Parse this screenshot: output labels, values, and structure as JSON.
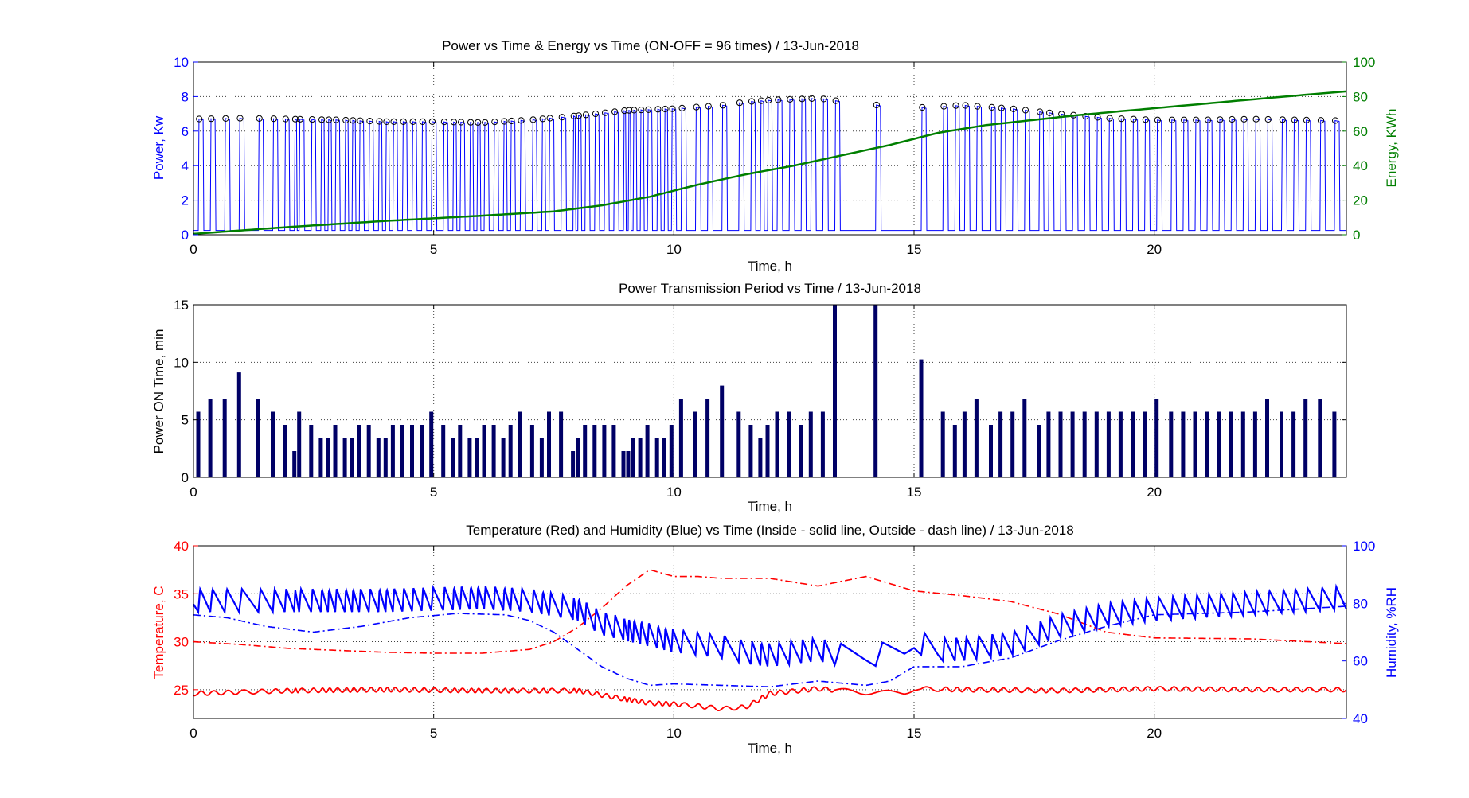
{
  "chart_data": [
    {
      "type": "line",
      "title": "Power vs Time & Energy vs Time (ON-OFF = 96 times) / 13-Jun-2018",
      "xlabel": "Time, h",
      "ylabel_left": "Power, Kw",
      "ylabel_right": "Energy, KWh",
      "xlim": [
        0,
        24
      ],
      "ylim_left": [
        0,
        10
      ],
      "ylim_right": [
        0,
        100
      ],
      "xticks": [
        "0",
        "5",
        "10",
        "15",
        "20"
      ],
      "yticks_left": [
        "0",
        "2",
        "4",
        "6",
        "8",
        "10"
      ],
      "yticks_right": [
        "0",
        "20",
        "40",
        "60",
        "80",
        "100"
      ],
      "grid": true,
      "colors": {
        "power": "#0000ff",
        "energy": "#007f00",
        "markers": "#000000"
      },
      "power_peak_profile": {
        "x": [
          0,
          1,
          2,
          3,
          4,
          5,
          6,
          7,
          8,
          9,
          10,
          11,
          11.5,
          12,
          13,
          13.5,
          14,
          15,
          16,
          17,
          18,
          19,
          20,
          21,
          22,
          23,
          24
        ],
        "y": [
          6.7,
          6.75,
          6.7,
          6.65,
          6.55,
          6.55,
          6.5,
          6.65,
          6.9,
          7.2,
          7.3,
          7.5,
          7.7,
          7.8,
          7.9,
          7.7,
          7.55,
          7.35,
          7.5,
          7.3,
          7.0,
          6.75,
          6.65,
          6.65,
          6.7,
          6.65,
          6.6
        ]
      },
      "power_base_kw": 0.25,
      "energy": {
        "x": [
          0,
          2,
          4,
          6,
          7.5,
          8.5,
          9.5,
          10.5,
          11.5,
          12.5,
          13.5,
          14.5,
          15.5,
          16.5,
          17.5,
          18.5,
          19.5,
          20.5,
          21.5,
          22.5,
          24
        ],
        "y": [
          0.5,
          4.5,
          8,
          11,
          13.5,
          17,
          22,
          29,
          35,
          40,
          46,
          52,
          59,
          63.5,
          66.5,
          69.5,
          72,
          74.5,
          77,
          79.5,
          83
        ]
      }
    },
    {
      "type": "bar",
      "title": "Power Transmission Period vs Time / 13-Jun-2018",
      "xlabel": "Time, h",
      "ylabel": "Power ON Time, min",
      "xlim": [
        0,
        24
      ],
      "ylim": [
        0,
        15
      ],
      "xticks": [
        "0",
        "5",
        "10",
        "15",
        "20"
      ],
      "yticks": [
        "0",
        "5",
        "10",
        "15"
      ],
      "grid": true,
      "color": "#000066",
      "bars": {
        "x": [
          0.1,
          0.35,
          0.65,
          0.95,
          1.35,
          1.65,
          1.9,
          2.1,
          2.2,
          2.45,
          2.65,
          2.8,
          2.95,
          3.15,
          3.3,
          3.45,
          3.65,
          3.85,
          4.0,
          4.15,
          4.35,
          4.55,
          4.75,
          4.95,
          5.2,
          5.4,
          5.55,
          5.75,
          5.9,
          6.05,
          6.25,
          6.45,
          6.6,
          6.8,
          7.05,
          7.25,
          7.4,
          7.65,
          7.9,
          8.0,
          8.15,
          8.35,
          8.55,
          8.75,
          8.95,
          9.05,
          9.15,
          9.3,
          9.45,
          9.65,
          9.8,
          9.95,
          10.15,
          10.45,
          10.7,
          11.0,
          11.35,
          11.6,
          11.8,
          11.95,
          12.15,
          12.4,
          12.65,
          12.85,
          13.1,
          13.35,
          14.2,
          15.15,
          15.6,
          15.85,
          16.05,
          16.3,
          16.6,
          16.8,
          17.05,
          17.3,
          17.6,
          17.8,
          18.05,
          18.3,
          18.55,
          18.8,
          19.05,
          19.3,
          19.55,
          19.8,
          20.05,
          20.35,
          20.6,
          20.85,
          21.1,
          21.35,
          21.6,
          21.85,
          22.1,
          22.35,
          22.65,
          22.9,
          23.15,
          23.45,
          23.75
        ]
      }
    },
    {
      "type": "line",
      "title": "Temperature (Red) and Humidity (Blue) vs Time (Inside - solid line, Outside - dash line) / 13-Jun-2018",
      "xlabel": "Time, h",
      "ylabel_left": "Temperature, C",
      "ylabel_right": "Humidity, %RH",
      "xlim": [
        0,
        24
      ],
      "ylim_left": [
        22,
        40
      ],
      "ylim_right": [
        40,
        100
      ],
      "xticks": [
        "0",
        "5",
        "10",
        "15",
        "20"
      ],
      "yticks_left": [
        "25",
        "30",
        "35",
        "40"
      ],
      "yticks_right": [
        "40",
        "60",
        "80",
        "100"
      ],
      "grid": true,
      "colors": {
        "temperature": "#ff0000",
        "humidity": "#0000ff"
      },
      "series": [
        {
          "axis": "left",
          "style": "solid",
          "color": "#ff0000",
          "osc_amp": 0.45,
          "x": [
            0,
            2,
            4,
            6,
            8,
            9,
            9.5,
            10,
            10.5,
            11,
            11.5,
            12,
            13,
            14,
            14.8,
            15,
            16,
            18,
            20,
            22,
            24
          ],
          "y": [
            24.6,
            24.9,
            25.0,
            24.9,
            24.9,
            24.0,
            23.6,
            23.5,
            23.3,
            23.0,
            23.2,
            24.6,
            25.1,
            24.7,
            24.7,
            25.1,
            25.0,
            24.9,
            25.1,
            25.0,
            25.0
          ]
        },
        {
          "axis": "left",
          "style": "dashdot",
          "color": "#ff0000",
          "x": [
            0,
            1,
            2,
            3,
            4,
            5,
            6,
            7,
            7.5,
            8,
            8.5,
            9,
            9.5,
            10,
            10.5,
            11,
            12,
            13,
            14,
            15,
            16,
            17,
            18,
            19,
            20,
            22,
            24
          ],
          "y": [
            30.0,
            29.7,
            29.3,
            29.1,
            28.9,
            28.8,
            28.8,
            29.2,
            30.0,
            31.5,
            33.5,
            35.8,
            37.5,
            36.8,
            36.8,
            36.6,
            36.6,
            35.8,
            36.8,
            35.3,
            34.8,
            34.2,
            32.9,
            31.0,
            30.4,
            30.3,
            29.8
          ]
        },
        {
          "axis": "right",
          "style": "solid",
          "color": "#0000ff",
          "osc_amp": 8,
          "x": [
            0,
            2,
            4,
            6,
            7,
            8,
            8.5,
            9,
            10,
            10.5,
            11,
            11.5,
            12,
            13,
            13.5,
            14,
            14.8,
            15,
            15.5,
            16,
            17,
            18,
            19,
            20,
            21,
            22,
            24
          ],
          "y": [
            81,
            81,
            81,
            82,
            81,
            78,
            73,
            71,
            67,
            66,
            65,
            63,
            62,
            64,
            62,
            62,
            63,
            67,
            64,
            64,
            66,
            72,
            76,
            78,
            79,
            80,
            82
          ]
        },
        {
          "axis": "right",
          "style": "dashdot",
          "color": "#0000ff",
          "x": [
            0,
            0.7,
            1.5,
            2.5,
            3.5,
            4.5,
            5.5,
            6.5,
            7,
            7.5,
            8,
            8.5,
            9,
            9.5,
            10,
            11,
            12,
            13,
            14,
            14.5,
            15,
            16,
            17,
            18,
            19,
            20,
            21,
            22,
            23,
            24
          ],
          "y": [
            76,
            75,
            72,
            70,
            72,
            75,
            76.5,
            76,
            74,
            70,
            64,
            58,
            54,
            51.5,
            52,
            51.5,
            51,
            53,
            51.5,
            53,
            58,
            58,
            61,
            67,
            72,
            76,
            76.5,
            77,
            78,
            79
          ]
        }
      ]
    }
  ]
}
